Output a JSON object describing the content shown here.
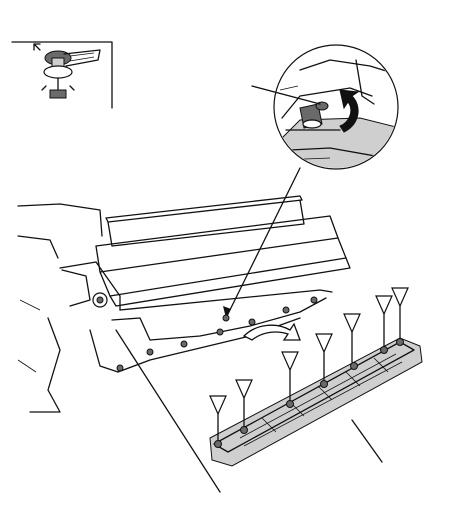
{
  "diagram": {
    "clip_marker_count": 8,
    "arrow_direction_hint": "toward-cover"
  }
}
